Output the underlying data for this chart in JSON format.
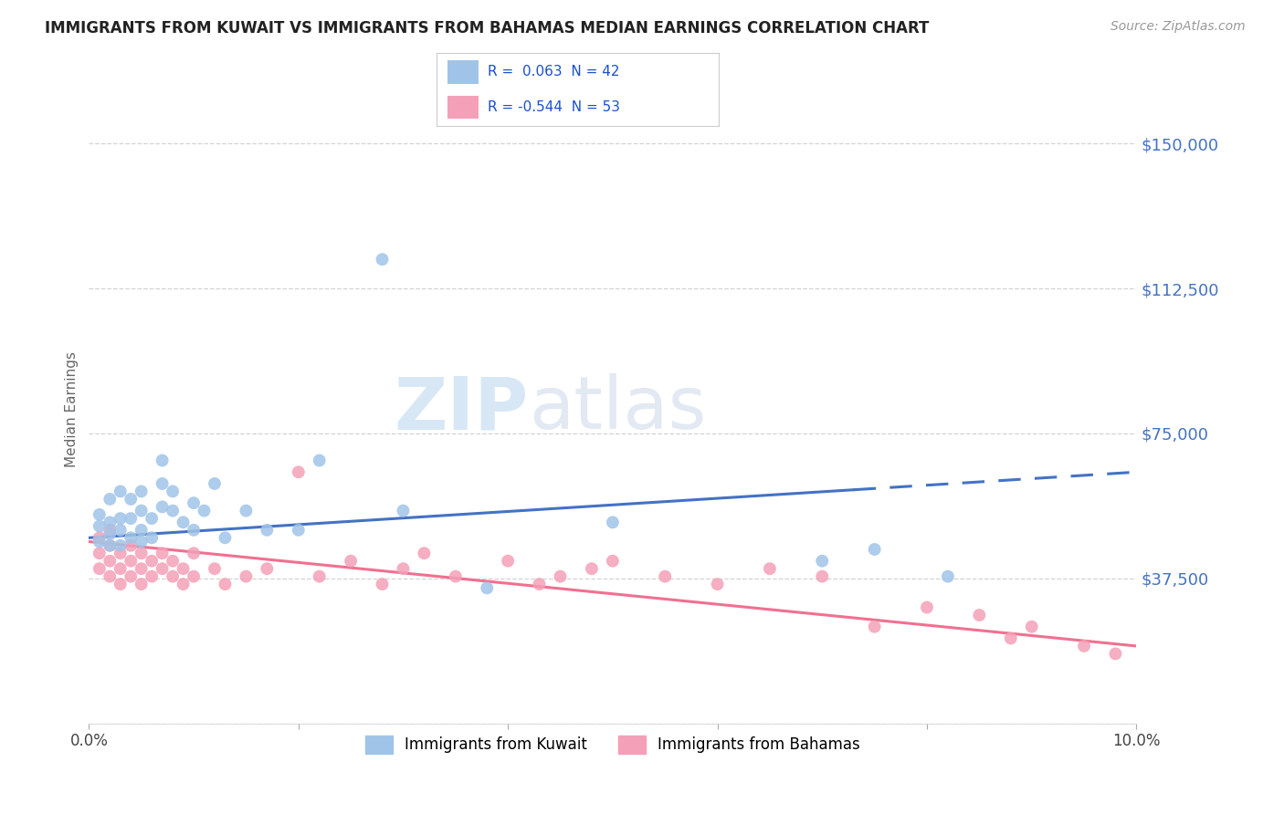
{
  "title": "IMMIGRANTS FROM KUWAIT VS IMMIGRANTS FROM BAHAMAS MEDIAN EARNINGS CORRELATION CHART",
  "source": "Source: ZipAtlas.com",
  "ylabel": "Median Earnings",
  "xlim": [
    0,
    0.1
  ],
  "ylim": [
    0,
    162500
  ],
  "yticks": [
    0,
    37500,
    75000,
    112500,
    150000
  ],
  "ytick_labels": [
    "",
    "$37,500",
    "$75,000",
    "$112,500",
    "$150,000"
  ],
  "xticks": [
    0,
    0.02,
    0.04,
    0.06,
    0.08,
    0.1
  ],
  "xtick_labels": [
    "0.0%",
    "",
    "",
    "",
    "",
    "10.0%"
  ],
  "background_color": "#ffffff",
  "grid_color": "#c8c8c8",
  "title_color": "#222222",
  "axis_label_color": "#4472c4",
  "kuwait_color": "#a0c4e8",
  "bahamas_color": "#f4a0b8",
  "kuwait_line_color": "#4472c4",
  "bahamas_line_color": "#f07090",
  "legend_label_kuwait": "Immigrants from Kuwait",
  "legend_label_bahamas": "Immigrants from Bahamas",
  "kuwait_x": [
    0.001,
    0.001,
    0.001,
    0.002,
    0.002,
    0.002,
    0.002,
    0.003,
    0.003,
    0.003,
    0.003,
    0.004,
    0.004,
    0.004,
    0.005,
    0.005,
    0.005,
    0.005,
    0.006,
    0.006,
    0.007,
    0.007,
    0.007,
    0.008,
    0.008,
    0.009,
    0.01,
    0.01,
    0.011,
    0.012,
    0.013,
    0.015,
    0.017,
    0.02,
    0.022,
    0.028,
    0.03,
    0.038,
    0.05,
    0.07,
    0.075,
    0.082
  ],
  "kuwait_y": [
    51000,
    47000,
    54000,
    49000,
    52000,
    46000,
    58000,
    50000,
    53000,
    46000,
    60000,
    48000,
    53000,
    58000,
    50000,
    55000,
    60000,
    47000,
    53000,
    48000,
    56000,
    62000,
    68000,
    55000,
    60000,
    52000,
    57000,
    50000,
    55000,
    62000,
    48000,
    55000,
    50000,
    50000,
    68000,
    120000,
    55000,
    35000,
    52000,
    42000,
    45000,
    38000
  ],
  "bahamas_x": [
    0.001,
    0.001,
    0.001,
    0.002,
    0.002,
    0.002,
    0.002,
    0.003,
    0.003,
    0.003,
    0.004,
    0.004,
    0.004,
    0.005,
    0.005,
    0.005,
    0.006,
    0.006,
    0.007,
    0.007,
    0.008,
    0.008,
    0.009,
    0.009,
    0.01,
    0.01,
    0.012,
    0.013,
    0.015,
    0.017,
    0.02,
    0.022,
    0.025,
    0.028,
    0.03,
    0.032,
    0.035,
    0.04,
    0.043,
    0.045,
    0.048,
    0.05,
    0.055,
    0.06,
    0.065,
    0.07,
    0.075,
    0.08,
    0.085,
    0.088,
    0.09,
    0.095,
    0.098
  ],
  "bahamas_y": [
    48000,
    44000,
    40000,
    46000,
    42000,
    38000,
    50000,
    44000,
    40000,
    36000,
    46000,
    42000,
    38000,
    44000,
    40000,
    36000,
    42000,
    38000,
    44000,
    40000,
    38000,
    42000,
    36000,
    40000,
    44000,
    38000,
    40000,
    36000,
    38000,
    40000,
    65000,
    38000,
    42000,
    36000,
    40000,
    44000,
    38000,
    42000,
    36000,
    38000,
    40000,
    42000,
    38000,
    36000,
    40000,
    38000,
    25000,
    30000,
    28000,
    22000,
    25000,
    20000,
    18000
  ],
  "kuwait_trend": [
    0.0,
    0.1,
    48000,
    65000
  ],
  "kuwait_trend_solid_end": 0.073,
  "bahamas_trend": [
    0.0,
    0.1,
    47000,
    20000
  ]
}
